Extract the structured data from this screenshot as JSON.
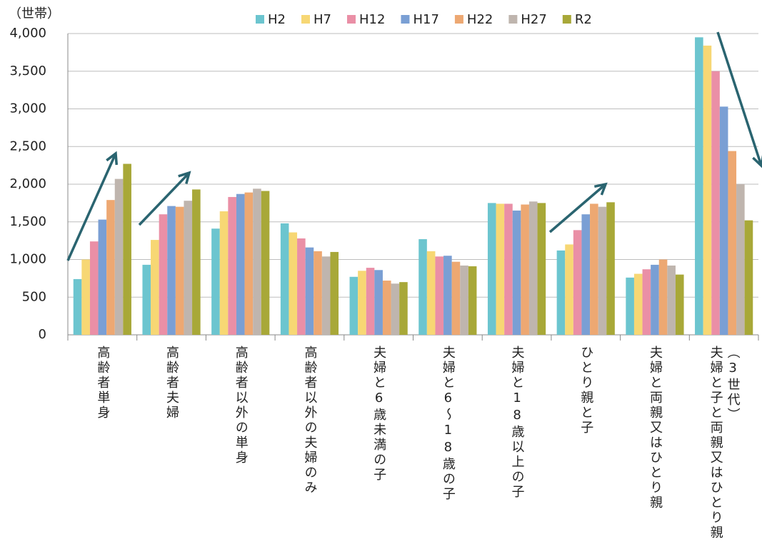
{
  "chart_data": {
    "type": "bar",
    "y_label": "（世帯）",
    "categories": [
      "高齢者単身",
      "高齢者夫婦",
      "高齢者以外の単身",
      "高齢者以外の夫婦のみ",
      "夫婦と6歳未満の子",
      "夫婦と6～18歳の子",
      "夫婦と18歳以上の子",
      "ひとり親と子",
      "夫婦と両親又はひとり親",
      "夫婦と子と両親又はひとり親（3世代）"
    ],
    "series": [
      {
        "name": "H2",
        "color": "#6cc5cf",
        "values": [
          740,
          930,
          1410,
          1480,
          770,
          1270,
          1750,
          1120,
          760,
          3950
        ]
      },
      {
        "name": "H7",
        "color": "#f7d774",
        "values": [
          1000,
          1260,
          1640,
          1360,
          850,
          1110,
          1740,
          1200,
          810,
          3840
        ]
      },
      {
        "name": "H12",
        "color": "#ea8fa6",
        "values": [
          1240,
          1600,
          1830,
          1280,
          890,
          1040,
          1740,
          1390,
          870,
          3500
        ]
      },
      {
        "name": "H17",
        "color": "#7a9fd4",
        "values": [
          1530,
          1710,
          1870,
          1160,
          860,
          1050,
          1650,
          1600,
          930,
          3030
        ]
      },
      {
        "name": "H22",
        "color": "#eda872",
        "values": [
          1790,
          1700,
          1890,
          1110,
          720,
          970,
          1730,
          1740,
          1000,
          2440
        ]
      },
      {
        "name": "H27",
        "color": "#bfb5ae",
        "values": [
          2070,
          1780,
          1940,
          1040,
          680,
          920,
          1770,
          1700,
          920,
          2000
        ]
      },
      {
        "name": "R2",
        "color": "#a8a838",
        "values": [
          2270,
          1930,
          1910,
          1100,
          700,
          910,
          1750,
          1760,
          800,
          1520
        ]
      }
    ],
    "ylim": [
      0,
      4000
    ],
    "yticks": [
      0,
      500,
      {
        "value": 1000,
        "label": "1,000"
      },
      {
        "value": 1500,
        "label": "1,500"
      },
      {
        "value": 2000,
        "label": "2,000"
      },
      {
        "value": 2500,
        "label": "2,500"
      },
      {
        "value": 3000,
        "label": "3,000"
      },
      {
        "value": 3500,
        "label": "3,500"
      },
      {
        "value": 4000,
        "label": "4,000"
      }
    ],
    "grid": true,
    "legend": "top"
  }
}
